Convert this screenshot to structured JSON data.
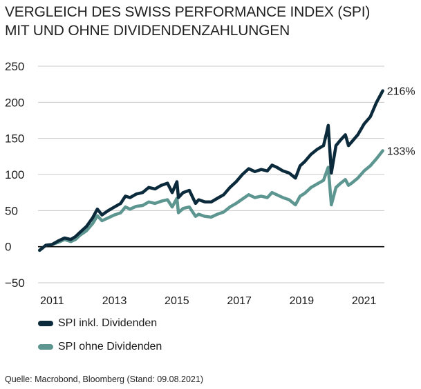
{
  "header": {
    "title_line1": "VERGLEICH DES SWISS PERFORMANCE INDEX (SPI)",
    "title_line2": "MIT UND OHNE DIVIDENDENZAHLUNGEN"
  },
  "source": "Quelle: Macrobond, Bloomberg (Stand: 09.08.2021)",
  "colors": {
    "dark": "#0b2a3b",
    "light": "#5d9690",
    "grid": "#c8c8c8",
    "zero": "#000000"
  },
  "chart_data": {
    "type": "line",
    "title": "VERGLEICH DES SWISS PERFORMANCE INDEX (SPI) MIT UND OHNE DIVIDENDENZAHLUNGEN",
    "xlabel": "",
    "ylabel": "",
    "xlim": [
      2010.55,
      2021.65
    ],
    "ylim": [
      -50,
      250
    ],
    "yticks": [
      -50,
      0,
      50,
      100,
      150,
      200,
      250
    ],
    "ytick_labels": [
      "−50",
      "0",
      "50",
      "100",
      "150",
      "200",
      "250"
    ],
    "xticks": [
      2011,
      2013,
      2015,
      2017,
      2019,
      2021
    ],
    "xtick_labels": [
      "2011",
      "2013",
      "2015",
      "2017",
      "2019",
      "2021"
    ],
    "grid": true,
    "legend_position": "bottom-left",
    "series": [
      {
        "name": "SPI inkl. Dividenden",
        "color": "#0b2a3b",
        "end_label": "216%",
        "x": [
          2010.6,
          2010.8,
          2011.0,
          2011.2,
          2011.4,
          2011.6,
          2011.75,
          2011.9,
          2012.1,
          2012.3,
          2012.45,
          2012.6,
          2012.8,
          2013.0,
          2013.2,
          2013.35,
          2013.5,
          2013.7,
          2013.9,
          2014.1,
          2014.3,
          2014.5,
          2014.7,
          2014.85,
          2015.0,
          2015.05,
          2015.2,
          2015.4,
          2015.6,
          2015.7,
          2015.9,
          2016.1,
          2016.3,
          2016.5,
          2016.7,
          2016.9,
          2017.1,
          2017.3,
          2017.5,
          2017.7,
          2017.9,
          2018.05,
          2018.2,
          2018.4,
          2018.6,
          2018.8,
          2018.95,
          2019.1,
          2019.3,
          2019.5,
          2019.7,
          2019.8,
          2019.85,
          2019.95,
          2020.1,
          2020.25,
          2020.4,
          2020.5,
          2020.6,
          2020.8,
          2021.0,
          2021.2,
          2021.4,
          2021.6
        ],
        "values": [
          -5,
          2,
          3,
          8,
          12,
          10,
          14,
          20,
          28,
          40,
          52,
          44,
          50,
          55,
          60,
          70,
          68,
          73,
          75,
          82,
          80,
          85,
          88,
          75,
          90,
          68,
          75,
          78,
          60,
          65,
          62,
          62,
          67,
          72,
          82,
          90,
          100,
          108,
          104,
          107,
          105,
          113,
          110,
          105,
          102,
          95,
          112,
          118,
          128,
          135,
          140,
          158,
          168,
          102,
          140,
          148,
          155,
          140,
          145,
          155,
          170,
          180,
          200,
          216
        ]
      },
      {
        "name": "SPI ohne Dividenden",
        "color": "#5d9690",
        "end_label": "133%",
        "x": [
          2010.6,
          2010.8,
          2011.0,
          2011.2,
          2011.4,
          2011.6,
          2011.75,
          2011.9,
          2012.1,
          2012.3,
          2012.45,
          2012.6,
          2012.8,
          2013.0,
          2013.2,
          2013.35,
          2013.5,
          2013.7,
          2013.9,
          2014.1,
          2014.3,
          2014.5,
          2014.7,
          2014.85,
          2015.0,
          2015.05,
          2015.2,
          2015.4,
          2015.6,
          2015.7,
          2015.9,
          2016.1,
          2016.3,
          2016.5,
          2016.7,
          2016.9,
          2017.1,
          2017.3,
          2017.5,
          2017.7,
          2017.9,
          2018.05,
          2018.2,
          2018.4,
          2018.6,
          2018.8,
          2018.95,
          2019.1,
          2019.3,
          2019.5,
          2019.7,
          2019.8,
          2019.85,
          2019.95,
          2020.1,
          2020.25,
          2020.4,
          2020.5,
          2020.6,
          2020.8,
          2021.0,
          2021.2,
          2021.4,
          2021.6
        ],
        "values": [
          -5,
          2,
          3,
          6,
          10,
          7,
          10,
          16,
          22,
          32,
          43,
          36,
          40,
          44,
          47,
          55,
          52,
          56,
          57,
          62,
          60,
          63,
          65,
          55,
          67,
          47,
          53,
          55,
          42,
          45,
          42,
          41,
          45,
          48,
          55,
          60,
          66,
          72,
          68,
          70,
          68,
          75,
          72,
          68,
          65,
          58,
          70,
          74,
          82,
          87,
          92,
          104,
          110,
          58,
          82,
          88,
          93,
          85,
          88,
          95,
          105,
          112,
          122,
          133
        ]
      }
    ]
  }
}
